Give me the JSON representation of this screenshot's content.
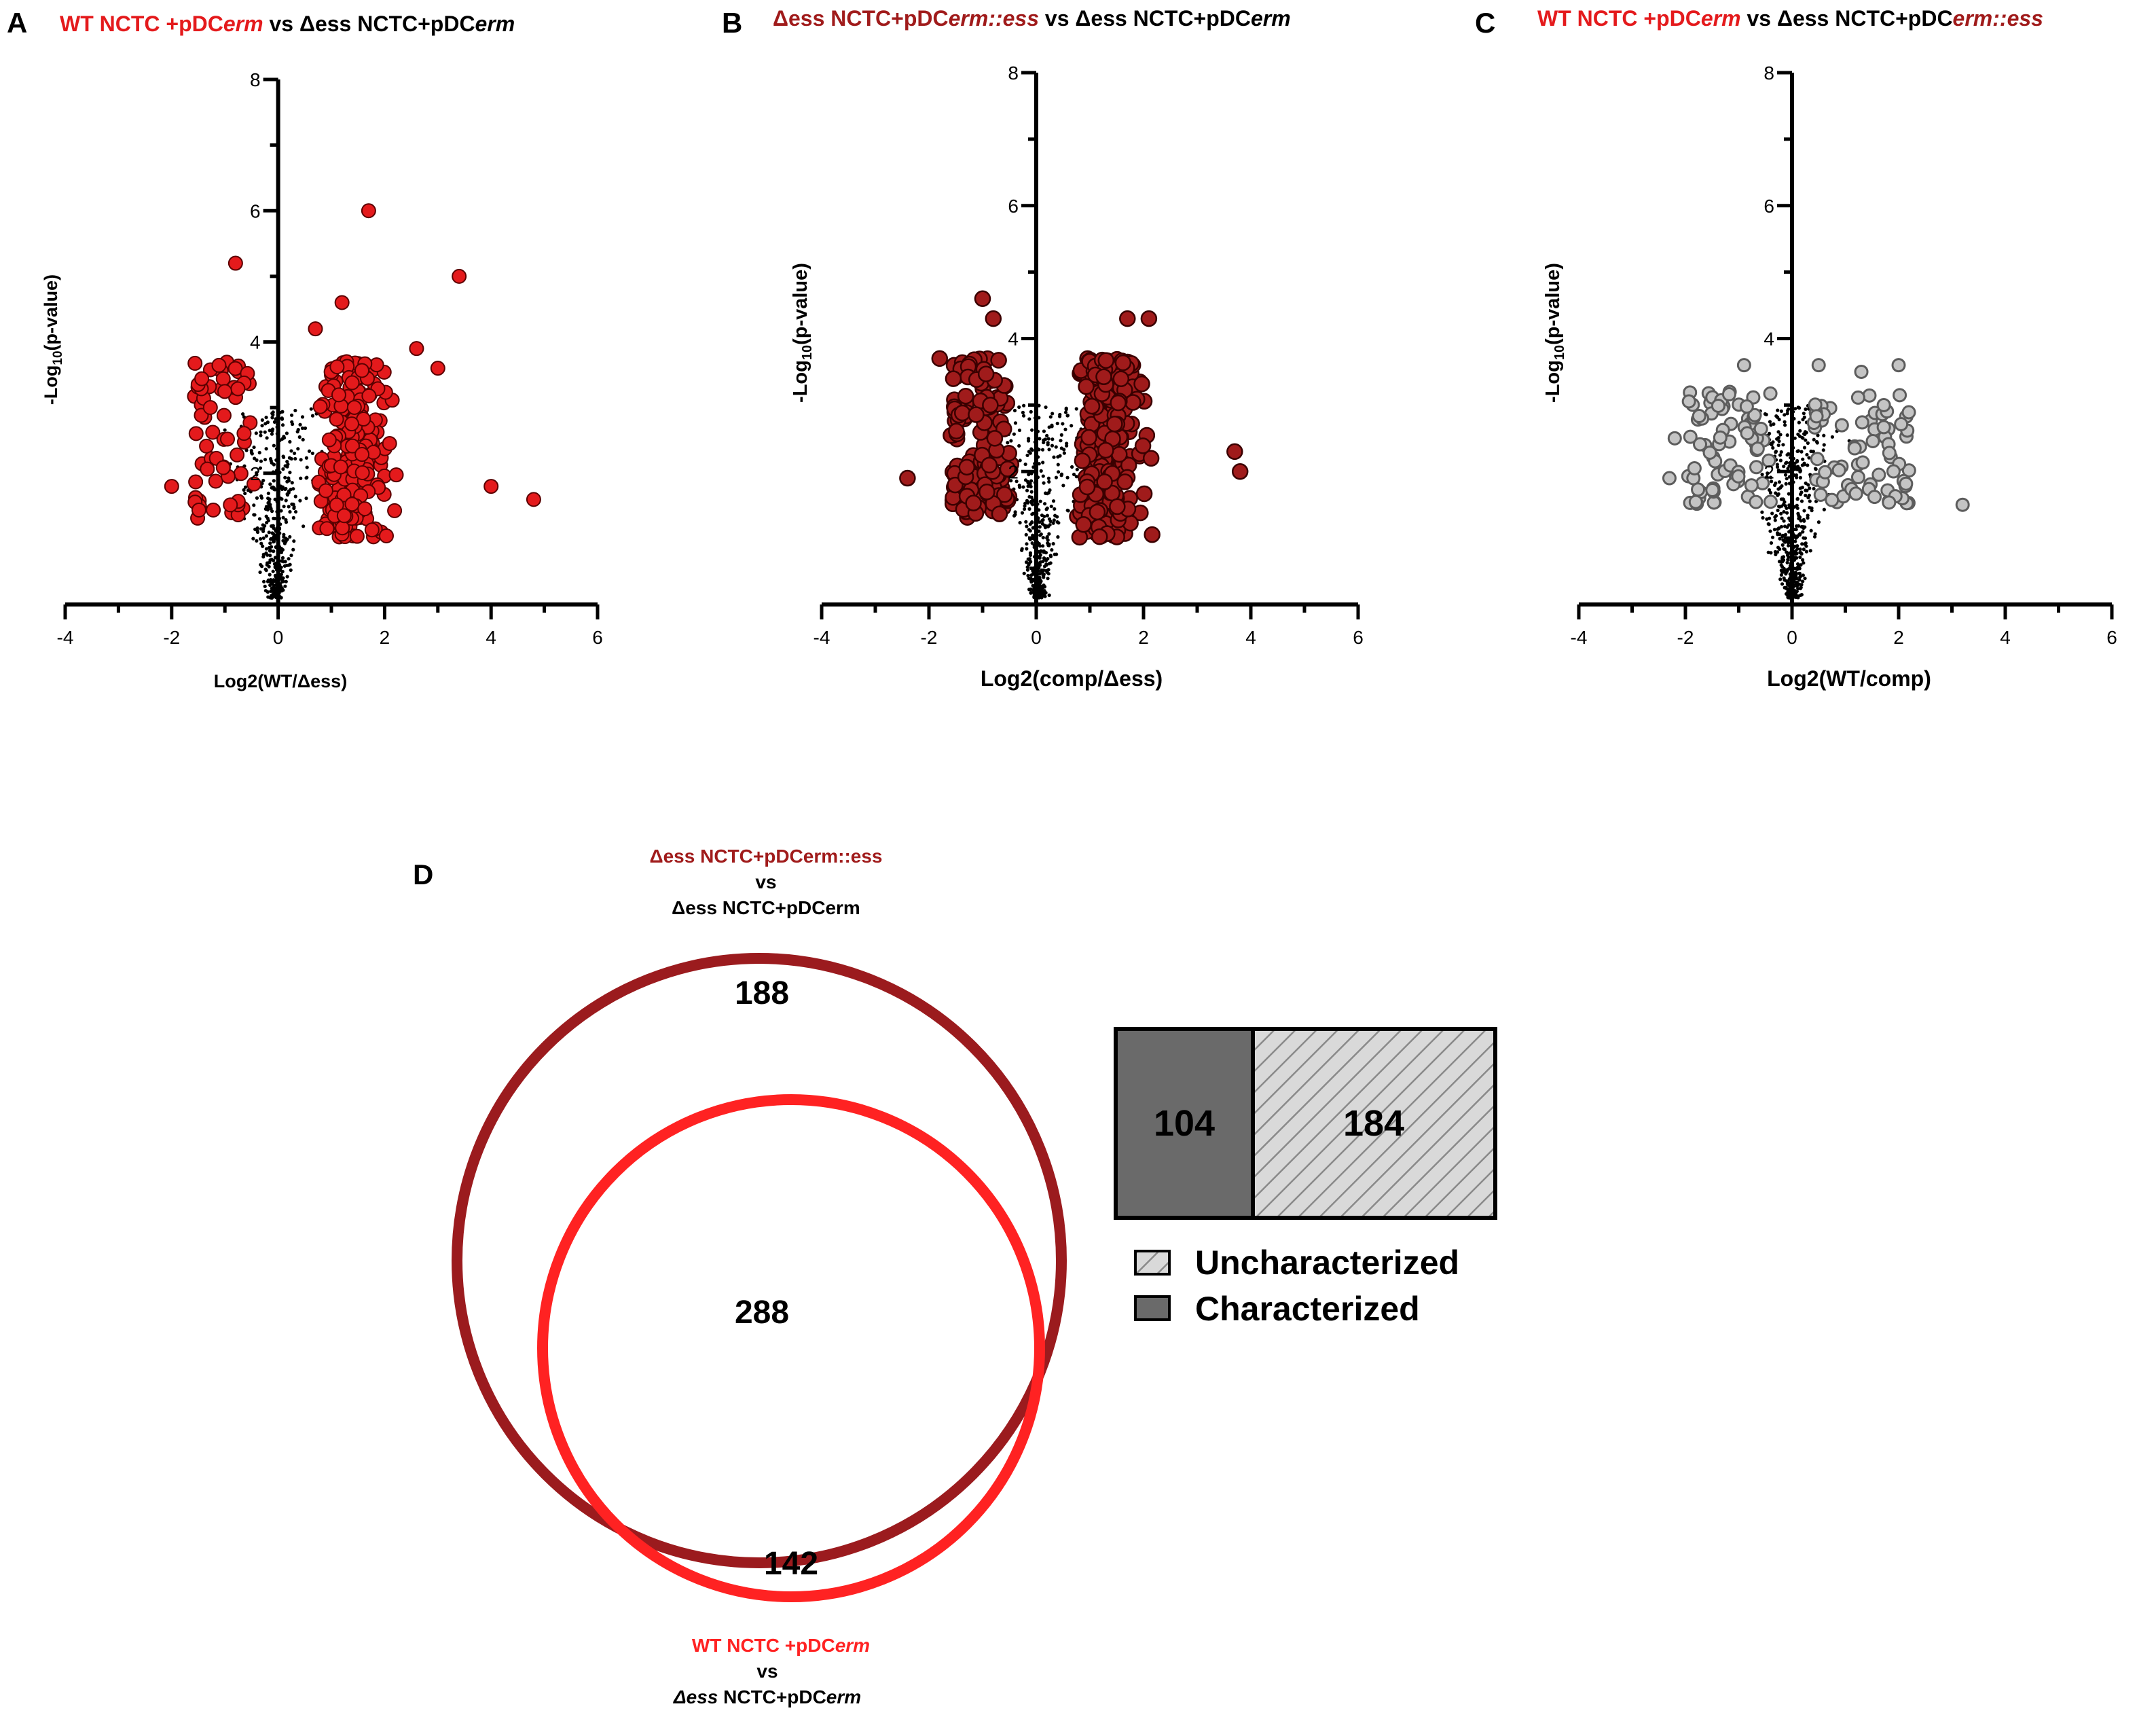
{
  "colors": {
    "sig_red": "#e41a1c",
    "sig_darkred": "#a01b1b",
    "circle_dark": "#9b1b1e",
    "circle_red": "#ff2222",
    "grey": "#c4c4c4",
    "black": "#000000",
    "bar_dark": "#6a6a6a",
    "bar_hatch": "#d9d9d9"
  },
  "chart_data": [
    {
      "id": "A",
      "type": "scatter",
      "panel_letter": "A",
      "title_part1": "WT NCTC +pDC",
      "title_part1_it": "erm",
      "title_part2": " vs Δess NCTC+pDC",
      "title_part2_it": "erm",
      "xlabel": "Log2(WT/Δess)",
      "ylabel_pre": "-Log",
      "ylabel_sub": "10",
      "ylabel_post": "(p-value)",
      "xlim": [
        -4,
        6
      ],
      "ylim": [
        0,
        8
      ],
      "xticks": [
        "-4",
        "-2",
        "0",
        "2",
        "4",
        "6"
      ],
      "yticks": [
        "8",
        "6",
        "4",
        "2"
      ],
      "series": [
        {
          "name": "significant",
          "marker": "sig_red",
          "n": 290,
          "x": [
            -0.8,
            0.7,
            1.7,
            3.4,
            -2.0,
            4.0,
            4.8,
            2.6,
            3.0,
            1.2
          ],
          "y": [
            5.2,
            4.2,
            6.0,
            5.0,
            1.8,
            1.8,
            1.6,
            3.9,
            3.6,
            4.6
          ]
        },
        {
          "name": "not significant",
          "marker": "black_dot",
          "n": 420
        }
      ]
    },
    {
      "id": "B",
      "type": "scatter",
      "panel_letter": "B",
      "title_part1": "Δess NCTC+pDC",
      "title_part1_it": "erm::ess",
      "title_part2": " vs Δess NCTC+pDC",
      "title_part2_it": "erm",
      "xlabel": "Log2(comp/Δess)",
      "ylabel_pre": "-Log",
      "ylabel_sub": "10",
      "ylabel_post": "(p-value)",
      "xlim": [
        -4,
        6
      ],
      "ylim": [
        0,
        8
      ],
      "xticks": [
        "-4",
        "-2",
        "0",
        "2",
        "4",
        "6"
      ],
      "yticks": [
        "8",
        "6",
        "4",
        "2"
      ],
      "series": [
        {
          "name": "significant",
          "marker": "sig_darkred",
          "n": 380,
          "x": [
            -1.0,
            -0.8,
            -2.4,
            3.8,
            3.7,
            2.1,
            1.7,
            -1.8
          ],
          "y": [
            4.6,
            4.3,
            1.9,
            2.0,
            2.3,
            4.3,
            4.3,
            3.7
          ]
        },
        {
          "name": "not significant",
          "marker": "black_dot",
          "n": 420
        }
      ]
    },
    {
      "id": "C",
      "type": "scatter",
      "panel_letter": "C",
      "title_part1": "WT NCTC +pDC",
      "title_part1_it": "erm",
      "title_part2": " vs Δess NCTC+pDC",
      "title_part2_it": "erm::ess",
      "xlabel": "Log2(WT/comp)",
      "ylabel_pre": "-Log",
      "ylabel_sub": "10",
      "ylabel_post": "(p-value)",
      "xlim": [
        -4,
        6
      ],
      "ylim": [
        0,
        8
      ],
      "xticks": [
        "-4",
        "-2",
        "0",
        "2",
        "4",
        "6"
      ],
      "yticks": [
        "8",
        "6",
        "4",
        "2"
      ],
      "series": [
        {
          "name": "significant",
          "marker": "grey_ring",
          "n": 150,
          "x": [
            -0.9,
            0.5,
            1.3,
            2.0,
            3.2,
            -2.2,
            -2.3
          ],
          "y": [
            3.6,
            3.6,
            3.5,
            3.6,
            1.5,
            2.5,
            1.9
          ]
        },
        {
          "name": "not significant",
          "marker": "black_dot",
          "n": 520
        }
      ]
    },
    {
      "id": "D",
      "type": "venn",
      "panel_letter": "D",
      "top_label_line1": "Δess NCTC+pDCerm::ess",
      "top_label_line2": "vs",
      "top_label_line3": "Δess NCTC+pDCerm",
      "bottom_label_line1_a": "WT NCTC +pDC",
      "bottom_label_line1_b": "erm",
      "bottom_label_line2": "vs",
      "bottom_label_line3_a": "Δess",
      "bottom_label_line3_b": " NCTC+pDC",
      "bottom_label_line3_c": "erm",
      "only_top": "188",
      "overlap": "288",
      "only_bottom": "142"
    },
    {
      "id": "D-bar",
      "type": "bar",
      "categories": [
        "Characterized",
        "Uncharacterized"
      ],
      "values": [
        104,
        184
      ],
      "value_labels": [
        "104",
        "184"
      ],
      "legend": [
        "Uncharacterized",
        "Characterized"
      ]
    }
  ]
}
